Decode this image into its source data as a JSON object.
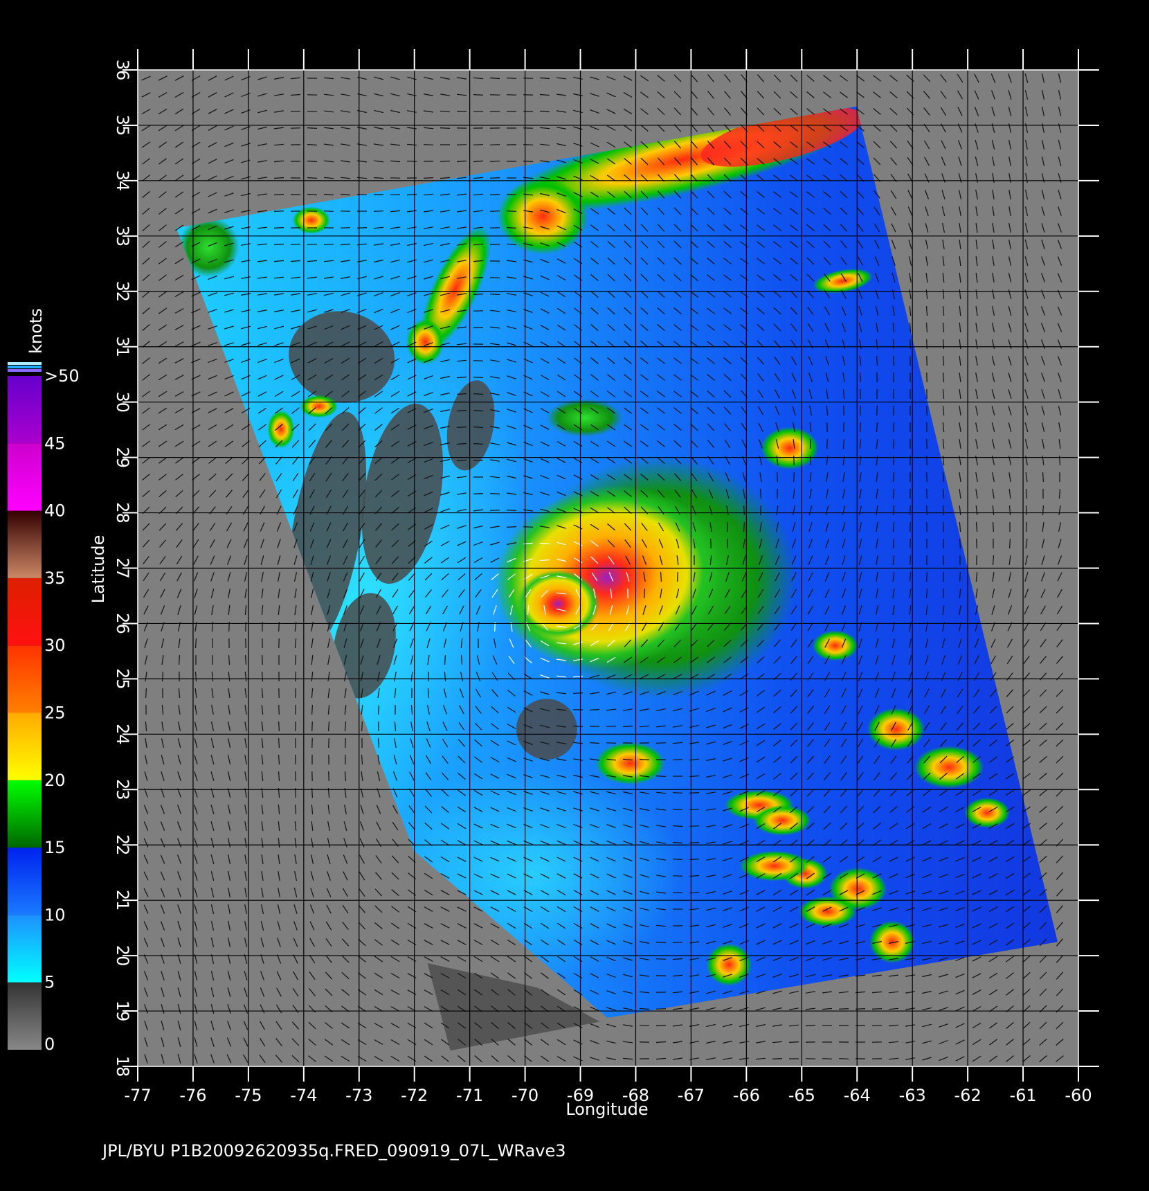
{
  "map": {
    "xlabel": "Longitude",
    "ylabel": "Latitude",
    "xlim": [
      -77,
      -60
    ],
    "ylim": [
      18,
      36
    ],
    "xticks": [
      -77,
      -76,
      -75,
      -74,
      -73,
      -72,
      -71,
      -70,
      -69,
      -68,
      -67,
      -66,
      -65,
      -64,
      -63,
      -62,
      -61,
      -60
    ],
    "yticks": [
      18,
      19,
      20,
      21,
      22,
      23,
      24,
      25,
      26,
      27,
      28,
      29,
      30,
      31,
      32,
      33,
      34,
      35,
      36
    ],
    "grid": true
  },
  "colorbar": {
    "unit": "knots",
    "ticks": [
      0,
      5,
      10,
      15,
      20,
      25,
      30,
      35,
      40,
      45,
      {
        "value": 50,
        "label": ">50"
      }
    ]
  },
  "footer": "JPL/BYU  P1B20092620935q.FRED_090919_07L_WRave3"
}
